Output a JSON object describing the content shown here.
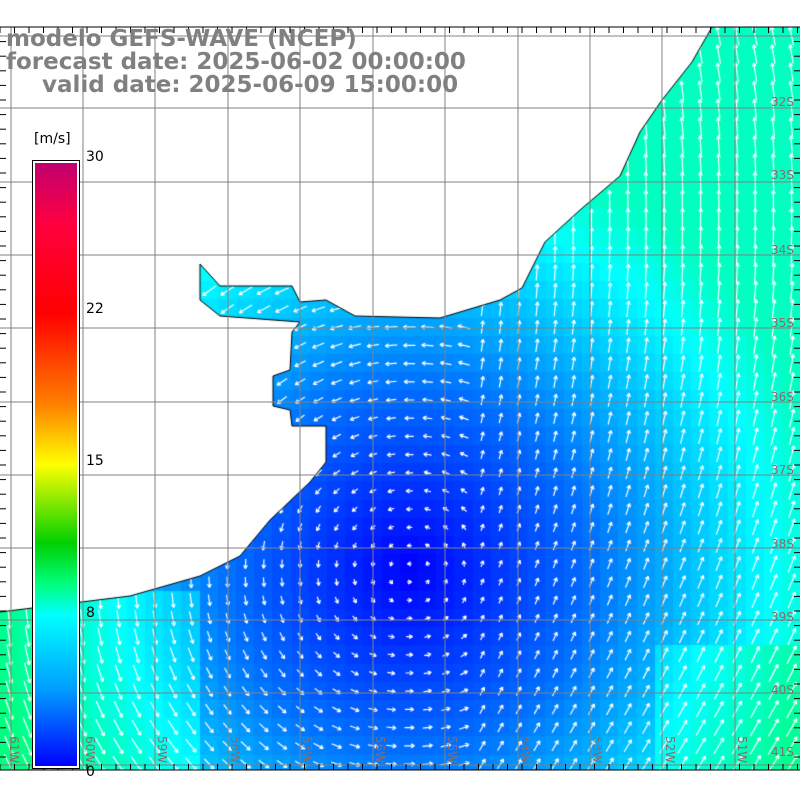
{
  "title": {
    "line1": "modelo GEFS-WAVE (NCEP)",
    "line2": "forecast date: 2025-06-02 00:00:00",
    "line3": "valid date: 2025-06-09 15:00:00"
  },
  "colorbar": {
    "unit": "[m/s]",
    "ticks": [
      "30",
      "22",
      "15",
      "8",
      "0"
    ],
    "range": [
      0,
      30
    ]
  },
  "axes": {
    "lon_labels": [
      "61W",
      "60W",
      "59W",
      "58W",
      "57W",
      "56W",
      "55W",
      "54W",
      "53W",
      "52W",
      "51W"
    ],
    "lat_labels": [
      "32S",
      "33S",
      "34S",
      "35S",
      "36S",
      "37S",
      "38S",
      "39S",
      "40S",
      "41S"
    ]
  },
  "colors": {
    "grid": "#808080",
    "coast": "#000000",
    "title": "#808080"
  }
}
